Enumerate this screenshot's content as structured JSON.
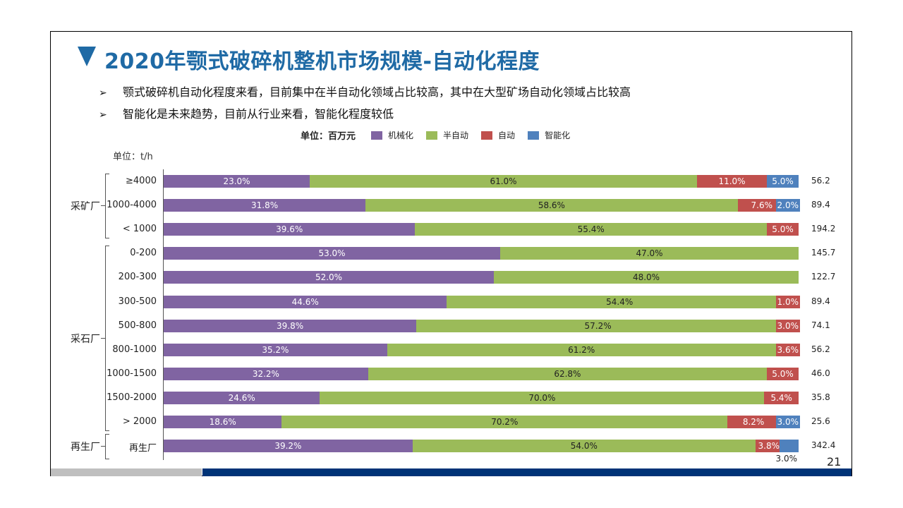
{
  "title": "2020年颚式破碎机整机市场规模-自动化程度",
  "bullets": [
    "颚式破碎机自动化程度来看，目前集中在半自动化领域占比较高，其中在大型矿场自动化领域占比较高",
    "智能化是未来趋势，目前从行业来看，智能化程度较低"
  ],
  "bullet_marker": "➢",
  "page_number": "21",
  "colors": {
    "title": "#1f6aa5",
    "mechanized": "#8064a2",
    "semi_auto": "#9bbb59",
    "auto": "#c0504d",
    "intelligent": "#4f81bd",
    "footer_grey": "#bfbfbf",
    "footer_blue": "#003377"
  },
  "chart_data": {
    "type": "bar",
    "orientation": "horizontal",
    "stacked": "percent",
    "legend_unit_label": "单位：百万元",
    "y_unit_label": "单位：t/h",
    "legend_position": "top",
    "series": [
      {
        "name": "机械化",
        "key": "mechanized",
        "values": [
          23.0,
          31.8,
          39.6,
          53.0,
          52.0,
          44.6,
          39.8,
          35.2,
          32.2,
          24.6,
          18.6,
          39.2
        ]
      },
      {
        "name": "半自动",
        "key": "semi_auto",
        "values": [
          61.0,
          58.6,
          55.4,
          47.0,
          48.0,
          54.4,
          57.2,
          61.2,
          62.8,
          70.0,
          70.2,
          54.0
        ]
      },
      {
        "name": "自动",
        "key": "auto",
        "values": [
          11.0,
          7.6,
          5.0,
          0,
          0,
          1.0,
          3.0,
          3.6,
          5.0,
          5.4,
          8.2,
          3.8
        ]
      },
      {
        "name": "智能化",
        "key": "intelligent",
        "values": [
          5.0,
          2.0,
          0,
          0,
          0,
          0,
          0,
          0,
          0,
          0,
          3.0,
          3.0
        ]
      }
    ],
    "categories": [
      "≥4000",
      "1000-4000",
      "< 1000",
      "0-200",
      "200-300",
      "300-500",
      "500-800",
      "800-1000",
      "1000-1500",
      "1500-2000",
      "> 2000",
      "再生厂"
    ],
    "totals": [
      "56.2",
      "89.4",
      "194.2",
      "145.7",
      "122.7",
      "89.4",
      "74.1",
      "56.2",
      "46.0",
      "35.8",
      "25.6",
      "342.4"
    ],
    "groups": [
      {
        "label": "采矿厂",
        "from": 0,
        "to": 2
      },
      {
        "label": "采石厂",
        "from": 3,
        "to": 10
      },
      {
        "label": "再生厂",
        "from": 11,
        "to": 11
      }
    ],
    "xlim": [
      0,
      100
    ]
  }
}
